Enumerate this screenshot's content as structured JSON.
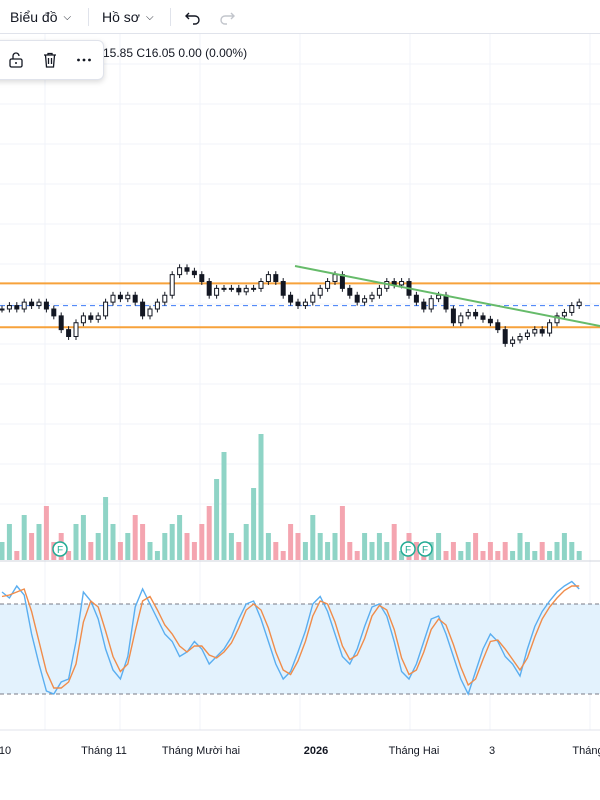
{
  "toolbar": {
    "chart_menu_label": "Biểu đồ",
    "profile_menu_label": "Hồ sơ"
  },
  "legend": {
    "ohlc_text": "15.85  C16.05  0.00 (0.00%)"
  },
  "drawing_toolbar": {
    "icons": [
      "unlock-icon",
      "trash-icon",
      "more-icon"
    ]
  },
  "x_axis": {
    "labels": [
      "10",
      "Tháng 11",
      "Tháng Mười hai",
      "2026",
      "Tháng Hai",
      "3",
      "Tháng"
    ]
  },
  "dividend_marker_label": "F",
  "colors": {
    "up": "#26a69a",
    "down": "#ef5350",
    "volume_up": "#8fd4c6",
    "volume_down": "#f4a5b0",
    "level_line": "#f7a23b",
    "trend_line": "#66bb6a",
    "stoch_k": "#5aaef0",
    "stoch_d": "#f08c4a",
    "stoch_band": "#e3f2fd"
  },
  "chart_data": {
    "type": "candlestick",
    "title": "",
    "series": [
      {
        "name": "",
        "kind": "price",
        "close": [
          15.8,
          15.85,
          15.8,
          15.9,
          15.85,
          15.9,
          15.8,
          15.7,
          15.5,
          15.4,
          15.6,
          15.7,
          15.65,
          15.7,
          15.9,
          16.0,
          15.95,
          16.0,
          15.9,
          15.7,
          15.8,
          15.9,
          16.0,
          16.3,
          16.4,
          16.35,
          16.3,
          16.2,
          16.0,
          16.1,
          16.1,
          16.1,
          16.05,
          16.1,
          16.1,
          16.2,
          16.3,
          16.2,
          16.0,
          15.9,
          15.85,
          15.9,
          16.0,
          16.1,
          16.2,
          16.3,
          16.1,
          16.0,
          15.9,
          15.95,
          16.0,
          16.1,
          16.2,
          16.15,
          16.2,
          16.0,
          15.9,
          15.8,
          15.95,
          16.0,
          15.8,
          15.6,
          15.7,
          15.75,
          15.7,
          15.65,
          15.6,
          15.5,
          15.3,
          15.35,
          15.4,
          15.45,
          15.5,
          15.45,
          15.6,
          15.7,
          15.75,
          15.85,
          15.9
        ]
      },
      {
        "name": "",
        "kind": "volume",
        "values": [
          2,
          4,
          1,
          5,
          3,
          4,
          6,
          2,
          3,
          1,
          4,
          5,
          2,
          3,
          7,
          4,
          2,
          3,
          5,
          4,
          2,
          1,
          3,
          4,
          5,
          3,
          2,
          4,
          6,
          9,
          12,
          3,
          2,
          4,
          8,
          14,
          3,
          2,
          1,
          4,
          3,
          2,
          5,
          3,
          2,
          3,
          6,
          2,
          1,
          3,
          2,
          3,
          2,
          4,
          1,
          3,
          2,
          1,
          2,
          3,
          1,
          2,
          1,
          2,
          3,
          1,
          2,
          1,
          2,
          1,
          3,
          2,
          1,
          2,
          1,
          2,
          3,
          2,
          1
        ]
      },
      {
        "name": "",
        "kind": "stochastic_k",
        "values": [
          88,
          84,
          92,
          86,
          60,
          40,
          22,
          20,
          28,
          30,
          55,
          88,
          82,
          70,
          50,
          36,
          30,
          45,
          78,
          90,
          80,
          70,
          60,
          55,
          45,
          48,
          55,
          50,
          40,
          45,
          50,
          58,
          70,
          80,
          82,
          70,
          55,
          40,
          30,
          35,
          48,
          62,
          80,
          85,
          75,
          60,
          45,
          40,
          50,
          65,
          78,
          80,
          72,
          55,
          35,
          30,
          40,
          55,
          70,
          72,
          60,
          45,
          30,
          20,
          35,
          50,
          60,
          55,
          45,
          40,
          32,
          50,
          65,
          75,
          82,
          88,
          92,
          95,
          90
        ]
      },
      {
        "name": "",
        "kind": "stochastic_d",
        "values": [
          85,
          86,
          88,
          90,
          75,
          55,
          35,
          24,
          24,
          28,
          40,
          68,
          82,
          78,
          62,
          45,
          35,
          40,
          62,
          82,
          85,
          76,
          66,
          60,
          52,
          48,
          52,
          52,
          46,
          44,
          48,
          54,
          64,
          76,
          80,
          76,
          64,
          48,
          36,
          33,
          42,
          55,
          72,
          82,
          80,
          68,
          52,
          43,
          46,
          57,
          72,
          79,
          76,
          63,
          44,
          33,
          36,
          48,
          63,
          70,
          66,
          53,
          38,
          26,
          30,
          43,
          55,
          56,
          50,
          43,
          36,
          44,
          58,
          70,
          78,
          84,
          89,
          92,
          92
        ]
      }
    ],
    "horizontal_levels": [
      "upper",
      "middle_dashed",
      "lower"
    ],
    "stochastic_band": [
      20,
      80
    ],
    "grid": true
  }
}
